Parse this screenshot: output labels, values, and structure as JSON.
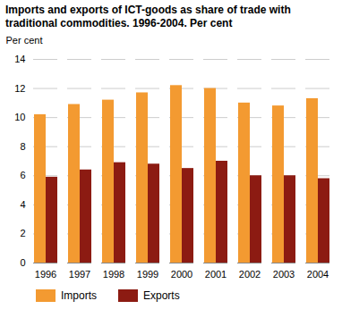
{
  "chart_data": {
    "type": "bar",
    "title": "Imports and exports of ICT-goods as share of trade with traditional commodities. 1996-2004. Per cent",
    "ylabel": "Per cent",
    "categories": [
      "1996",
      "1997",
      "1998",
      "1999",
      "2000",
      "2001",
      "2002",
      "2003",
      "2004"
    ],
    "series": [
      {
        "name": "Imports",
        "color": "#f39a31",
        "values": [
          10.2,
          10.9,
          11.2,
          11.7,
          12.2,
          12.0,
          11.0,
          10.8,
          11.3
        ]
      },
      {
        "name": "Exports",
        "color": "#8c1b12",
        "values": [
          5.9,
          6.4,
          6.9,
          6.8,
          6.5,
          7.0,
          6.0,
          6.0,
          5.8
        ]
      }
    ],
    "ylim": [
      0,
      14
    ],
    "yticks": [
      0,
      2,
      4,
      6,
      8,
      10,
      12,
      14
    ],
    "grid": true,
    "legend": "bottom"
  }
}
